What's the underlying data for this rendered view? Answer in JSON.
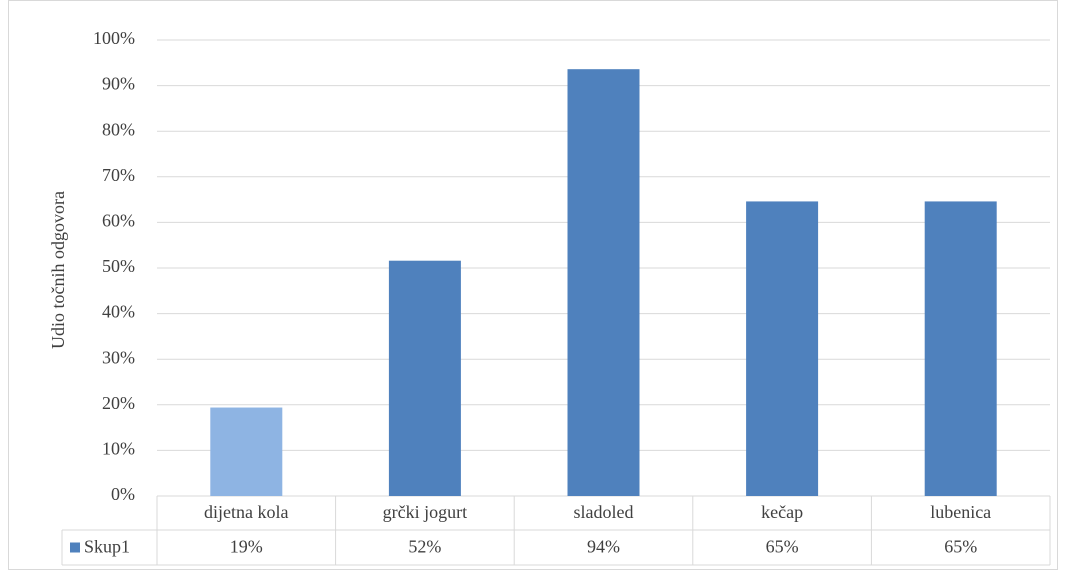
{
  "chart_data": {
    "type": "bar",
    "y_label": "Udio točnih odgovora",
    "categories": [
      "dijetna kola",
      "grčki jogurt",
      "sladoled",
      "kečap",
      "lubenica"
    ],
    "series": [
      {
        "name": "Skup1",
        "color": "#4f81bd",
        "colors": [
          "#8eb4e3",
          "#4f81bd",
          "#4f81bd",
          "#4f81bd",
          "#4f81bd"
        ],
        "values": [
          19.4,
          51.6,
          93.6,
          64.6,
          64.6
        ],
        "value_labels": [
          "19%",
          "52%",
          "94%",
          "65%",
          "65%"
        ]
      }
    ],
    "ylim": [
      0,
      100
    ],
    "yticks": [
      {
        "value": 0,
        "label": "0%"
      },
      {
        "value": 10,
        "label": "10%"
      },
      {
        "value": 20,
        "label": "20%"
      },
      {
        "value": 30,
        "label": "30%"
      },
      {
        "value": 40,
        "label": "40%"
      },
      {
        "value": 50,
        "label": "50%"
      },
      {
        "value": 60,
        "label": "60%"
      },
      {
        "value": 70,
        "label": "70%"
      },
      {
        "value": 80,
        "label": "80%"
      },
      {
        "value": 90,
        "label": "90%"
      },
      {
        "value": 100,
        "label": "100%"
      }
    ],
    "grid": true,
    "data_table": true
  }
}
